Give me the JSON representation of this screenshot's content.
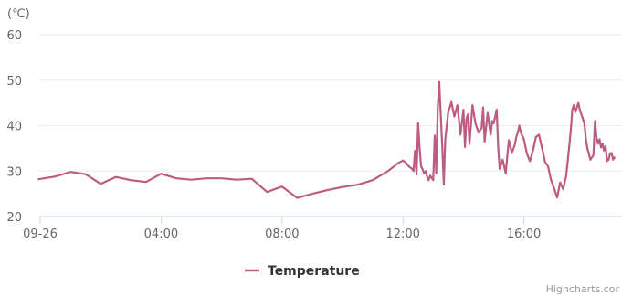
{
  "chart_data": {
    "type": "line",
    "title": "",
    "ylabel": "(℃)",
    "xlabel": "",
    "ylim": [
      20,
      60
    ],
    "y_ticks": [
      "20",
      "30",
      "40",
      "50",
      "60"
    ],
    "x_tick_labels": [
      "09-26",
      "04:00",
      "08:00",
      "12:00",
      "16:00"
    ],
    "x_tick_hours": [
      0,
      4,
      8,
      12,
      16
    ],
    "xlim_hours": [
      -0.1,
      19.0
    ],
    "grid": true,
    "legend": "bottom-center",
    "series": [
      {
        "name": "Temperature",
        "color": "#BC5C80",
        "x_hours": [
          -0.05,
          0.5,
          1.0,
          1.5,
          2.0,
          2.5,
          3.0,
          3.5,
          4.0,
          4.5,
          5.0,
          5.5,
          6.0,
          6.5,
          7.0,
          7.5,
          8.0,
          8.5,
          9.0,
          9.5,
          10.0,
          10.5,
          11.0,
          11.5,
          11.7,
          11.85,
          12.0,
          12.1,
          12.2,
          12.3,
          12.35,
          12.4,
          12.45,
          12.5,
          12.55,
          12.6,
          12.65,
          12.7,
          12.75,
          12.8,
          12.85,
          12.9,
          13.0,
          13.05,
          13.1,
          13.15,
          13.2,
          13.3,
          13.35,
          13.4,
          13.5,
          13.55,
          13.6,
          13.7,
          13.8,
          13.9,
          14.0,
          14.05,
          14.1,
          14.15,
          14.2,
          14.3,
          14.4,
          14.5,
          14.6,
          14.65,
          14.7,
          14.8,
          14.9,
          14.95,
          15.0,
          15.1,
          15.15,
          15.2,
          15.3,
          15.4,
          15.5,
          15.55,
          15.6,
          15.7,
          15.75,
          15.8,
          15.85,
          15.9,
          16.0,
          16.1,
          16.2,
          16.3,
          16.4,
          16.5,
          16.6,
          16.7,
          16.8,
          16.9,
          17.0,
          17.1,
          17.2,
          17.3,
          17.4,
          17.5,
          17.55,
          17.6,
          17.65,
          17.7,
          17.8,
          17.85,
          17.9,
          18.0,
          18.05,
          18.1,
          18.2,
          18.3,
          18.35,
          18.4,
          18.45,
          18.5,
          18.55,
          18.6,
          18.65,
          18.7,
          18.75,
          18.8,
          18.85,
          18.9,
          18.95,
          19.0
        ],
        "values": [
          28.2,
          28.8,
          29.8,
          29.3,
          27.2,
          28.7,
          28.0,
          27.6,
          29.4,
          28.4,
          28.1,
          28.4,
          28.4,
          28.1,
          28.3,
          25.4,
          26.6,
          24.1,
          25.0,
          25.8,
          26.5,
          27.0,
          28.0,
          30.0,
          31.0,
          31.8,
          32.3,
          31.8,
          31.0,
          30.5,
          30.0,
          34.5,
          29.2,
          40.5,
          35.0,
          31.0,
          30.4,
          29.5,
          30.0,
          28.7,
          28.0,
          29.0,
          28.0,
          37.8,
          29.5,
          44.0,
          49.6,
          35.5,
          27.0,
          37.0,
          43.2,
          44.0,
          45.2,
          42.0,
          44.5,
          38.0,
          43.5,
          35.3,
          41.5,
          42.5,
          36.0,
          44.5,
          40.5,
          38.5,
          39.5,
          44.0,
          36.5,
          42.8,
          38.0,
          41.0,
          40.5,
          43.5,
          35.0,
          30.5,
          32.5,
          29.5,
          36.8,
          35.5,
          34.0,
          35.8,
          37.5,
          38.5,
          40.0,
          38.5,
          37.0,
          33.8,
          32.2,
          34.5,
          37.5,
          38.0,
          35.0,
          32.0,
          31.0,
          28.0,
          26.2,
          24.2,
          27.5,
          26.0,
          29.0,
          35.5,
          39.0,
          43.5,
          44.5,
          43.0,
          45.0,
          43.5,
          42.5,
          40.5,
          37.0,
          35.0,
          32.5,
          33.5,
          41.0,
          37.5,
          36.0,
          37.0,
          35.2,
          36.0,
          34.5,
          35.5,
          32.2,
          32.5,
          33.8,
          34.0,
          32.5,
          33.0
        ]
      }
    ]
  },
  "credits": "Highcharts.cor"
}
